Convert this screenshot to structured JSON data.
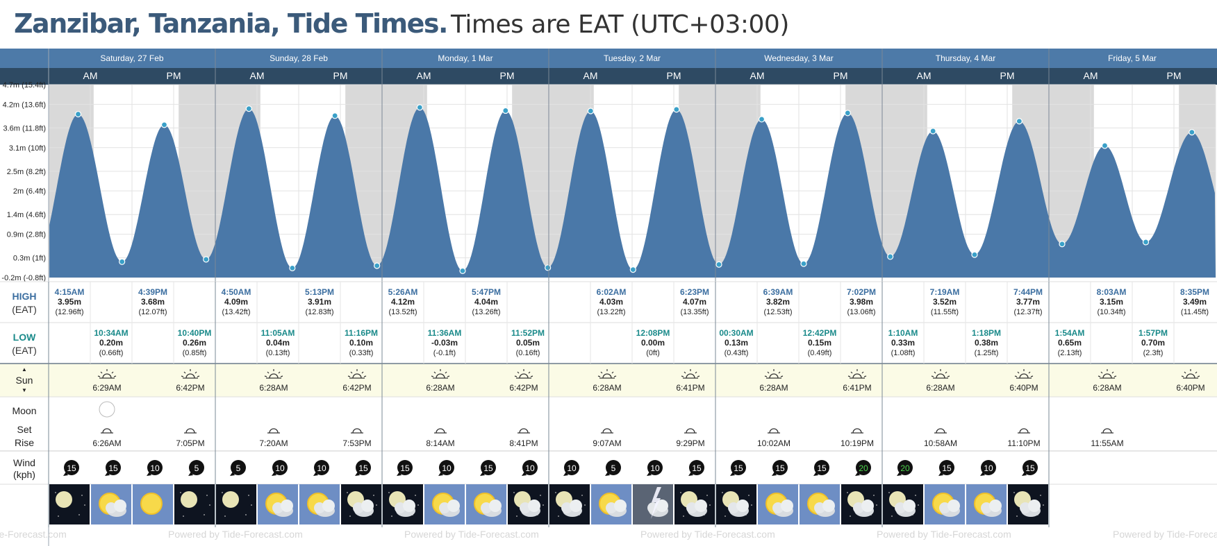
{
  "title": {
    "place": "Zanzibar, Tanzania, Tide Times.",
    "timezone": "Times are EAT (UTC+03:00)"
  },
  "ampm": {
    "am": "AM",
    "pm": "PM"
  },
  "days": [
    {
      "name": "Saturday, 27 Feb",
      "dark": [
        [
          0,
          0.27
        ],
        [
          0.78,
          1
        ]
      ],
      "tides": [
        {
          "type": "high",
          "time": "4:15AM",
          "m": "3.95m",
          "ft": "(12.96ft)"
        },
        {
          "type": "low",
          "time": "10:34AM",
          "m": "0.20m",
          "ft": "(0.66ft)"
        },
        {
          "type": "high",
          "time": "4:39PM",
          "m": "3.68m",
          "ft": "(12.07ft)"
        },
        {
          "type": "low",
          "time": "10:40PM",
          "m": "0.26m",
          "ft": "(0.85ft)"
        }
      ],
      "sunrise": "6:29AM",
      "sunset": "6:42PM",
      "moonset": "6:26AM",
      "moonrise": "7:05PM",
      "moon_phase": "full-moon",
      "wind": [
        15,
        15,
        10,
        5
      ],
      "weather": [
        "moon-clear",
        "sun-cloud",
        "sun",
        "moon-clear"
      ]
    },
    {
      "name": "Sunday, 28 Feb",
      "dark": [
        [
          0,
          0.27
        ],
        [
          0.78,
          1
        ]
      ],
      "tides": [
        {
          "type": "high",
          "time": "4:50AM",
          "m": "4.09m",
          "ft": "(13.42ft)"
        },
        {
          "type": "low",
          "time": "11:05AM",
          "m": "0.04m",
          "ft": "(0.13ft)"
        },
        {
          "type": "high",
          "time": "5:13PM",
          "m": "3.91m",
          "ft": "(12.83ft)"
        },
        {
          "type": "low",
          "time": "11:16PM",
          "m": "0.10m",
          "ft": "(0.33ft)"
        }
      ],
      "sunrise": "6:28AM",
      "sunset": "6:42PM",
      "moonset": "7:20AM",
      "moonrise": "7:53PM",
      "wind": [
        5,
        10,
        10,
        15
      ],
      "weather": [
        "moon-clear",
        "sun-cloud",
        "sun-cloud",
        "moon-cloud"
      ]
    },
    {
      "name": "Monday, 1 Mar",
      "dark": [
        [
          0,
          0.27
        ],
        [
          0.78,
          1
        ]
      ],
      "tides": [
        {
          "type": "high",
          "time": "5:26AM",
          "m": "4.12m",
          "ft": "(13.52ft)"
        },
        {
          "type": "low",
          "time": "11:36AM",
          "m": "-0.03m",
          "ft": "(-0.1ft)"
        },
        {
          "type": "high",
          "time": "5:47PM",
          "m": "4.04m",
          "ft": "(13.26ft)"
        },
        {
          "type": "low",
          "time": "11:52PM",
          "m": "0.05m",
          "ft": "(0.16ft)"
        }
      ],
      "sunrise": "6:28AM",
      "sunset": "6:42PM",
      "moonset": "8:14AM",
      "moonrise": "8:41PM",
      "wind": [
        15,
        10,
        15,
        10
      ],
      "weather": [
        "moon-cloud",
        "sun-cloud",
        "sun-cloud",
        "moon-cloud"
      ]
    },
    {
      "name": "Tuesday, 2 Mar",
      "dark": [
        [
          0,
          0.27
        ],
        [
          0.78,
          1
        ]
      ],
      "tides": [
        {
          "type": "high",
          "time": "6:02AM",
          "m": "4.03m",
          "ft": "(13.22ft)"
        },
        {
          "type": "low",
          "time": "12:08PM",
          "m": "0.00m",
          "ft": "(0ft)"
        },
        {
          "type": "high",
          "time": "6:23PM",
          "m": "4.07m",
          "ft": "(13.35ft)"
        }
      ],
      "sunrise": "6:28AM",
      "sunset": "6:41PM",
      "moonset": "9:07AM",
      "moonrise": "9:29PM",
      "wind": [
        10,
        5,
        10,
        15
      ],
      "weather": [
        "moon-cloud",
        "sun-cloud",
        "storm",
        "moon-cloud"
      ]
    },
    {
      "name": "Wednesday, 3 Mar",
      "dark": [
        [
          0,
          0.27
        ],
        [
          0.78,
          1
        ]
      ],
      "tides": [
        {
          "type": "low",
          "time": "00:30AM",
          "m": "0.13m",
          "ft": "(0.43ft)"
        },
        {
          "type": "high",
          "time": "6:39AM",
          "m": "3.82m",
          "ft": "(12.53ft)"
        },
        {
          "type": "low",
          "time": "12:42PM",
          "m": "0.15m",
          "ft": "(0.49ft)"
        },
        {
          "type": "high",
          "time": "7:02PM",
          "m": "3.98m",
          "ft": "(13.06ft)"
        }
      ],
      "sunrise": "6:28AM",
      "sunset": "6:41PM",
      "moonset": "10:02AM",
      "moonrise": "10:19PM",
      "wind": [
        15,
        15,
        15,
        20
      ],
      "weather": [
        "moon-cloud",
        "sun-cloud",
        "sun-cloud",
        "moon-cloud"
      ]
    },
    {
      "name": "Thursday, 4 Mar",
      "dark": [
        [
          0,
          0.27
        ],
        [
          0.78,
          1
        ]
      ],
      "tides": [
        {
          "type": "low",
          "time": "1:10AM",
          "m": "0.33m",
          "ft": "(1.08ft)"
        },
        {
          "type": "high",
          "time": "7:19AM",
          "m": "3.52m",
          "ft": "(11.55ft)"
        },
        {
          "type": "low",
          "time": "1:18PM",
          "m": "0.38m",
          "ft": "(1.25ft)"
        },
        {
          "type": "high",
          "time": "7:44PM",
          "m": "3.77m",
          "ft": "(12.37ft)"
        }
      ],
      "sunrise": "6:28AM",
      "sunset": "6:40PM",
      "moonset": "10:58AM",
      "moonrise": "11:10PM",
      "wind": [
        20,
        15,
        10,
        15
      ],
      "weather": [
        "moon-cloud",
        "sun-cloud",
        "sun-cloud",
        "moon-cloud"
      ]
    },
    {
      "name": "Friday, 5 Mar",
      "dark": [
        [
          0,
          0.27
        ],
        [
          0.78,
          1
        ]
      ],
      "tides": [
        {
          "type": "low",
          "time": "1:54AM",
          "m": "0.65m",
          "ft": "(2.13ft)"
        },
        {
          "type": "high",
          "time": "8:03AM",
          "m": "3.15m",
          "ft": "(10.34ft)"
        },
        {
          "type": "low",
          "time": "1:57PM",
          "m": "0.70m",
          "ft": "(2.3ft)"
        },
        {
          "type": "high",
          "time": "8:35PM",
          "m": "3.49m",
          "ft": "(11.45ft)"
        }
      ],
      "sunrise": "6:28AM",
      "sunset": "6:40PM",
      "moonset": "11:55AM",
      "moonrise": "",
      "wind": [],
      "weather": []
    }
  ],
  "y_axis": {
    "ticks": [
      {
        "v": 4.7,
        "label": "4.7m (15.4ft)"
      },
      {
        "v": 4.2,
        "label": "4.2m (13.6ft)"
      },
      {
        "v": 3.6,
        "label": "3.6m (11.8ft)"
      },
      {
        "v": 3.1,
        "label": "3.1m (10ft)"
      },
      {
        "v": 2.5,
        "label": "2.5m (8.2ft)"
      },
      {
        "v": 2.0,
        "label": "2m (6.4ft)"
      },
      {
        "v": 1.4,
        "label": "1.4m (4.6ft)"
      },
      {
        "v": 0.9,
        "label": "0.9m (2.8ft)"
      },
      {
        "v": 0.3,
        "label": "0.3m (1ft)"
      },
      {
        "v": -0.2,
        "label": "-0.2m (-0.8ft)"
      }
    ]
  },
  "row_labels": {
    "high": "HIGH",
    "high_tz": "(EAT)",
    "low": "LOW",
    "low_tz": "(EAT)",
    "sun": "Sun",
    "moon": "Moon",
    "moon_set": "Set",
    "moon_rise": "Rise",
    "wind": "Wind",
    "wind_unit": "(kph)"
  },
  "footer": {
    "text": "Powered by Tide-Forecast.com"
  },
  "colors": {
    "header": "#4d7aa8",
    "subheader": "#2e4a63",
    "tide_fill": "#4a78a8",
    "night": "#d9d9d9",
    "sun_row": "#fbfbe6",
    "high_text": "#3b6ea0",
    "low_text": "#1a8a8a",
    "marker": "#3aa0c8"
  },
  "chart_data": {
    "type": "area",
    "title": "",
    "xlabel": "",
    "ylabel": "",
    "ylim": [
      -0.2,
      4.7
    ],
    "series": [
      {
        "x": [
          "Sat 4:15AM",
          "Sat 10:34AM",
          "Sat 4:39PM",
          "Sat 10:40PM",
          "Sun 4:50AM",
          "Sun 11:05AM",
          "Sun 5:13PM",
          "Sun 11:16PM",
          "Mon 5:26AM",
          "Mon 11:36AM",
          "Mon 5:47PM",
          "Mon 11:52PM",
          "Tue 6:02AM",
          "Tue 12:08PM",
          "Tue 6:23PM",
          "Wed 00:30AM",
          "Wed 6:39AM",
          "Wed 12:42PM",
          "Wed 7:02PM",
          "Thu 1:10AM",
          "Thu 7:19AM",
          "Thu 1:18PM",
          "Thu 7:44PM",
          "Fri 1:54AM",
          "Fri 8:03AM",
          "Fri 1:57PM",
          "Fri 8:35PM"
        ],
        "values": [
          3.95,
          0.2,
          3.68,
          0.26,
          4.09,
          0.04,
          3.91,
          0.1,
          4.12,
          -0.03,
          4.04,
          0.05,
          4.03,
          0.0,
          4.07,
          0.13,
          3.82,
          0.15,
          3.98,
          0.33,
          3.52,
          0.38,
          3.77,
          0.65,
          3.15,
          0.7,
          3.49
        ]
      }
    ]
  }
}
